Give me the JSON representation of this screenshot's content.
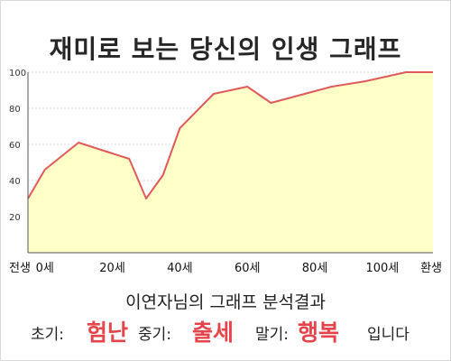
{
  "chart_data": {
    "type": "area",
    "title": "재미로 보는 당신의 인생 그래프",
    "x": [
      -5,
      0,
      10,
      15,
      20,
      25,
      30,
      35,
      40,
      50,
      55,
      60,
      67,
      75,
      85,
      95,
      107,
      115
    ],
    "values": [
      30,
      46,
      61,
      58,
      55,
      52,
      30,
      43,
      69,
      88,
      90,
      92,
      83,
      87,
      92,
      95,
      100,
      100
    ],
    "x_tick_labels": [
      "전생",
      "0세",
      "20세",
      "40세",
      "60세",
      "80세",
      "100세",
      "환생"
    ],
    "y_ticks": [
      "20",
      "40",
      "60",
      "80",
      "100"
    ],
    "ylim": [
      0,
      100
    ],
    "grid": true,
    "colors": {
      "line": "#e05a5a",
      "fill": "#ffffc8"
    }
  },
  "result": {
    "heading": "이연자님의 그래프 분석결과",
    "early_label": "초기:",
    "early_value": "험난",
    "middle_label": "중기:",
    "middle_value": "출세",
    "late_label": "말기:",
    "late_value": "행복",
    "suffix": "입니다"
  }
}
